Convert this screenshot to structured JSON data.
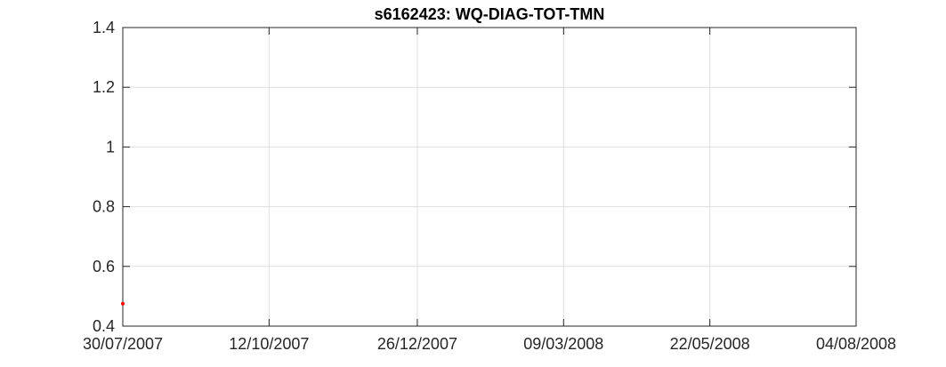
{
  "chart_data": {
    "type": "scatter",
    "title": "s6162423: WQ-DIAG-TOT-TMN",
    "xlabel": "",
    "ylabel": "",
    "x_axis_type": "date",
    "xlim": [
      "2007-07-30",
      "2008-08-04"
    ],
    "ylim": [
      0.4,
      1.4
    ],
    "x_ticks": [
      "2007-07-30",
      "2007-10-12",
      "2007-12-26",
      "2008-03-09",
      "2008-05-22",
      "2008-08-04"
    ],
    "x_tick_labels": [
      "30/07/2007",
      "12/10/2007",
      "26/12/2007",
      "09/03/2008",
      "22/05/2008",
      "04/08/2008"
    ],
    "y_ticks": [
      0.4,
      0.6,
      0.8,
      1.0,
      1.2,
      1.4
    ],
    "y_tick_labels": [
      "0.4",
      "0.6",
      "0.8",
      "1",
      "1.2",
      "1.4"
    ],
    "grid": true,
    "series": [
      {
        "color": "#ff0000",
        "points": [
          {
            "x": "2007-07-30",
            "y": 0.475
          }
        ]
      }
    ]
  }
}
